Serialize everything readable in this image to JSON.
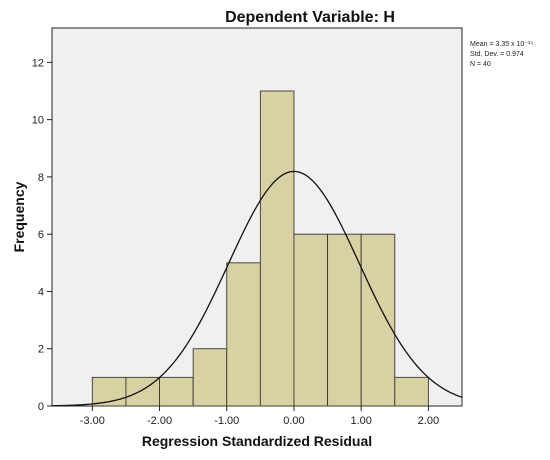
{
  "chart_data": {
    "type": "bar",
    "title": "Dependent Variable: H",
    "xlabel": "Regression Standardized Residual",
    "ylabel": "Frequency",
    "x_ticks": [
      "-3.00",
      "-2.00",
      "-1.00",
      "0.00",
      "1.00",
      "2.00"
    ],
    "x_tick_values": [
      -3,
      -2,
      -1,
      0,
      1,
      2
    ],
    "y_ticks": [
      "0",
      "2",
      "4",
      "6",
      "8",
      "10",
      "12"
    ],
    "y_tick_values": [
      0,
      2,
      4,
      6,
      8,
      10,
      12
    ],
    "xlim": [
      -3.6,
      2.5
    ],
    "ylim": [
      0,
      13.2
    ],
    "bins": [
      {
        "start": -3.0,
        "end": -2.5,
        "count": 1
      },
      {
        "start": -2.5,
        "end": -2.0,
        "count": 1
      },
      {
        "start": -2.0,
        "end": -1.5,
        "count": 1
      },
      {
        "start": -1.5,
        "end": -1.0,
        "count": 2
      },
      {
        "start": -1.0,
        "end": -0.5,
        "count": 5
      },
      {
        "start": -0.5,
        "end": 0.0,
        "count": 11
      },
      {
        "start": 0.0,
        "end": 0.5,
        "count": 6
      },
      {
        "start": 0.5,
        "end": 1.0,
        "count": 6
      },
      {
        "start": 1.0,
        "end": 1.5,
        "count": 6
      },
      {
        "start": 1.5,
        "end": 2.0,
        "count": 1
      }
    ],
    "normal_curve": {
      "mean": 0,
      "sd": 0.974,
      "n": 40,
      "bin_width": 0.5
    },
    "stats_text": [
      "Mean = 3.35 x 10⁻¹⁵",
      "Std. Dev. = 0.974",
      "N = 40"
    ],
    "colors": {
      "bar_fill": "#d7d1a3",
      "bar_stroke": "#3a3a30",
      "plot_bg": "#f0f0f0",
      "curve": "#111111"
    },
    "grid": false
  }
}
